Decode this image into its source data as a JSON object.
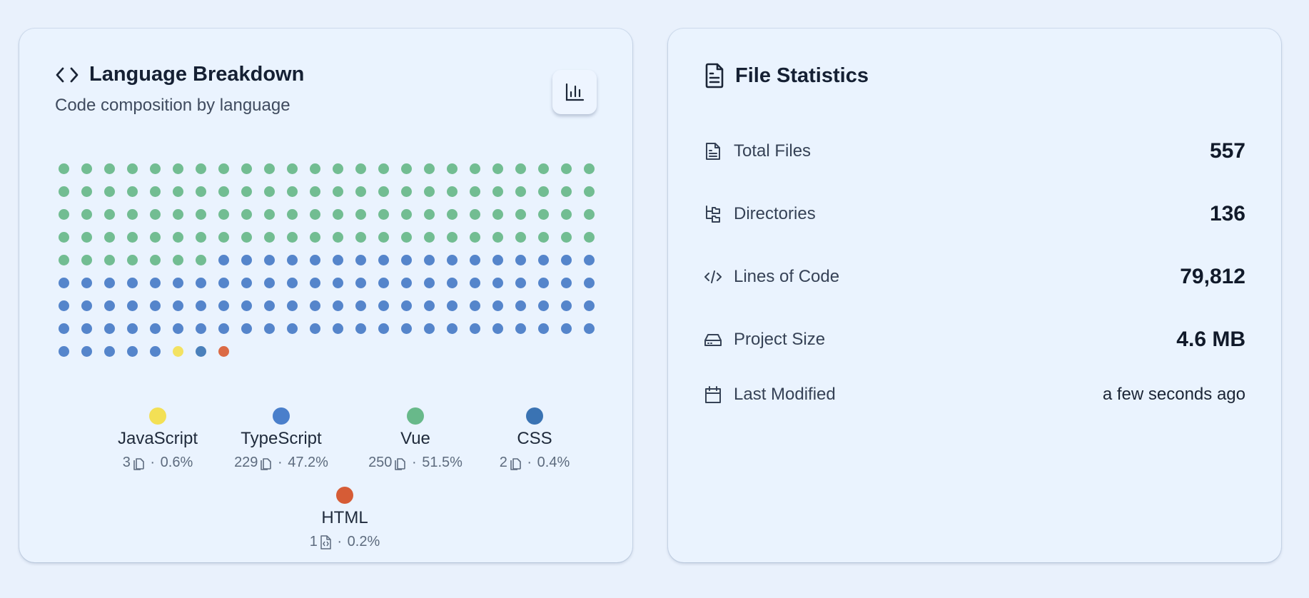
{
  "language_card": {
    "title": "Language Breakdown",
    "subtitle": "Code composition by language",
    "chart_toggle_icon": "bar-chart-icon"
  },
  "chart_data": {
    "type": "waffle",
    "title": "Language Breakdown",
    "total_dots": 200,
    "dot_order": [
      "Vue",
      "TypeScript",
      "JavaScript",
      "CSS",
      "HTML"
    ],
    "dots_per_language": {
      "Vue": 103,
      "TypeScript": 94,
      "JavaScript": 1,
      "CSS": 1,
      "HTML": 1
    },
    "languages": [
      {
        "name": "JavaScript",
        "files": "3",
        "percent": "0.6%",
        "color": "#f3e055",
        "file_icon": "copy-icon"
      },
      {
        "name": "TypeScript",
        "files": "229",
        "percent": "47.2%",
        "color": "#4a7fcb",
        "file_icon": "copy-icon"
      },
      {
        "name": "Vue",
        "files": "250",
        "percent": "51.5%",
        "color": "#68b98a",
        "file_icon": "copy-icon"
      },
      {
        "name": "CSS",
        "files": "2",
        "percent": "0.4%",
        "color": "#3a73b3",
        "file_icon": "copy-icon"
      },
      {
        "name": "HTML",
        "files": "1",
        "percent": "0.2%",
        "color": "#d65c36",
        "file_icon": "file-code-icon"
      }
    ],
    "dot_colors": {
      "Vue": "#72bd92",
      "TypeScript": "#5585cb",
      "JavaScript": "#f3e262",
      "CSS": "#4a80bb",
      "HTML": "#db6a45"
    }
  },
  "stats_card": {
    "title": "File Statistics",
    "rows": [
      {
        "label": "Total Files",
        "value": "557",
        "icon": "file-text-icon"
      },
      {
        "label": "Directories",
        "value": "136",
        "icon": "folder-tree-icon"
      },
      {
        "label": "Lines of Code",
        "value": "79,812",
        "icon": "code-icon"
      },
      {
        "label": "Project Size",
        "value": "4.6 MB",
        "icon": "hard-drive-icon"
      },
      {
        "label": "Last Modified",
        "value": "a few seconds ago",
        "icon": "calendar-icon"
      }
    ]
  }
}
